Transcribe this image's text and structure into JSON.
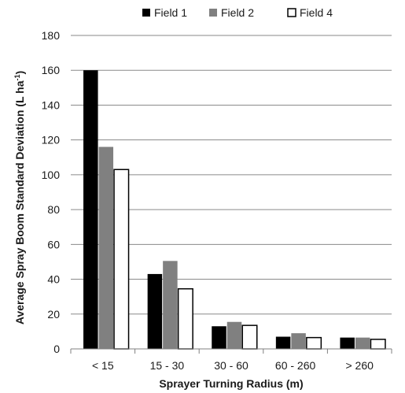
{
  "chart_data": {
    "type": "bar",
    "categories": [
      "< 15",
      "15 - 30",
      "30 - 60",
      "60 - 260",
      "> 260"
    ],
    "series": [
      {
        "name": "Field 1",
        "values": [
          160,
          43,
          13,
          7,
          6.5
        ],
        "color": "#000000"
      },
      {
        "name": "Field 2",
        "values": [
          116,
          50.5,
          15.5,
          9,
          6.5
        ],
        "color": "#808080"
      },
      {
        "name": "Field 4",
        "values": [
          103,
          34.5,
          13.5,
          6.5,
          5.5
        ],
        "color": "#ffffff"
      }
    ],
    "ylabel": "Average Spray Boom Standard Deviation (L ha-1)",
    "ylabel_parts": {
      "main": "Average Spray Boom Standard Deviation (L ha",
      "sup": "-1",
      "tail": ")"
    },
    "xlabel": "Sprayer Turning Radius (m)",
    "ylim": [
      0,
      180
    ],
    "yticks": [
      "0",
      "20",
      "40",
      "60",
      "80",
      "100",
      "120",
      "140",
      "160",
      "180"
    ],
    "grid": true,
    "legend_position": "top"
  }
}
